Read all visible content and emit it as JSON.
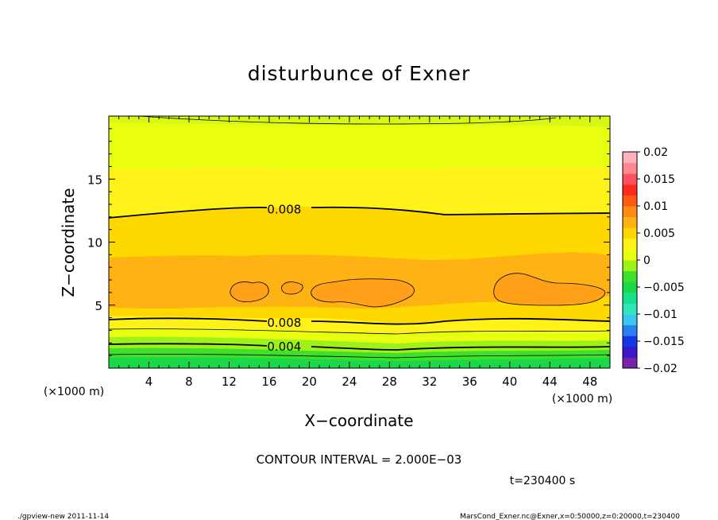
{
  "chart_data": {
    "type": "heatmap",
    "title": "disturbunce of Exner",
    "xlabel": "X−coordinate",
    "ylabel": "Z−coordinate",
    "x_unit": "(×1000 m)",
    "y_unit": "(×1000 m)",
    "xlim": [
      0,
      50
    ],
    "ylim": [
      0,
      20
    ],
    "x_ticks": [
      "4",
      "8",
      "12",
      "16",
      "20",
      "24",
      "28",
      "32",
      "36",
      "40",
      "44",
      "48"
    ],
    "x_tick_values": [
      4,
      8,
      12,
      16,
      20,
      24,
      28,
      32,
      36,
      40,
      44,
      48
    ],
    "y_ticks": [
      "5",
      "10",
      "15"
    ],
    "y_tick_values": [
      5,
      10,
      15
    ],
    "contour_labels": [
      {
        "text": "0.008",
        "x": 17.5,
        "z": 12.6
      },
      {
        "text": "0.008",
        "x": 17.5,
        "z": 3.6
      },
      {
        "text": "0.004",
        "x": 17.5,
        "z": 1.7
      }
    ],
    "colorbar": {
      "labels": [
        "0.02",
        "0.015",
        "0.01",
        "0.005",
        "0",
        "−0.005",
        "−0.01",
        "−0.015",
        "−0.02"
      ],
      "min": -0.02,
      "max": 0.02,
      "colors": [
        "#7a22a8",
        "#3a1ac8",
        "#1438e6",
        "#2a7ff2",
        "#3ac6f0",
        "#2ee8b8",
        "#18e08a",
        "#1ad848",
        "#3ee02a",
        "#9ef21a",
        "#e8ff10",
        "#fff218",
        "#ffd800",
        "#ffb214",
        "#ff8a14",
        "#ff5a14",
        "#ff2a1e",
        "#ff5060",
        "#ff8890",
        "#ffb4bc"
      ]
    },
    "contour_interval": "CONTOUR INTERVAL = 2.000E−03",
    "time_label": "t=230400 s"
  },
  "footer": {
    "left": "./gpview-new   2011-11-14",
    "right": "MarsCond_Exner.nc@Exner,x=0:50000,z=0:20000,t=230400"
  }
}
